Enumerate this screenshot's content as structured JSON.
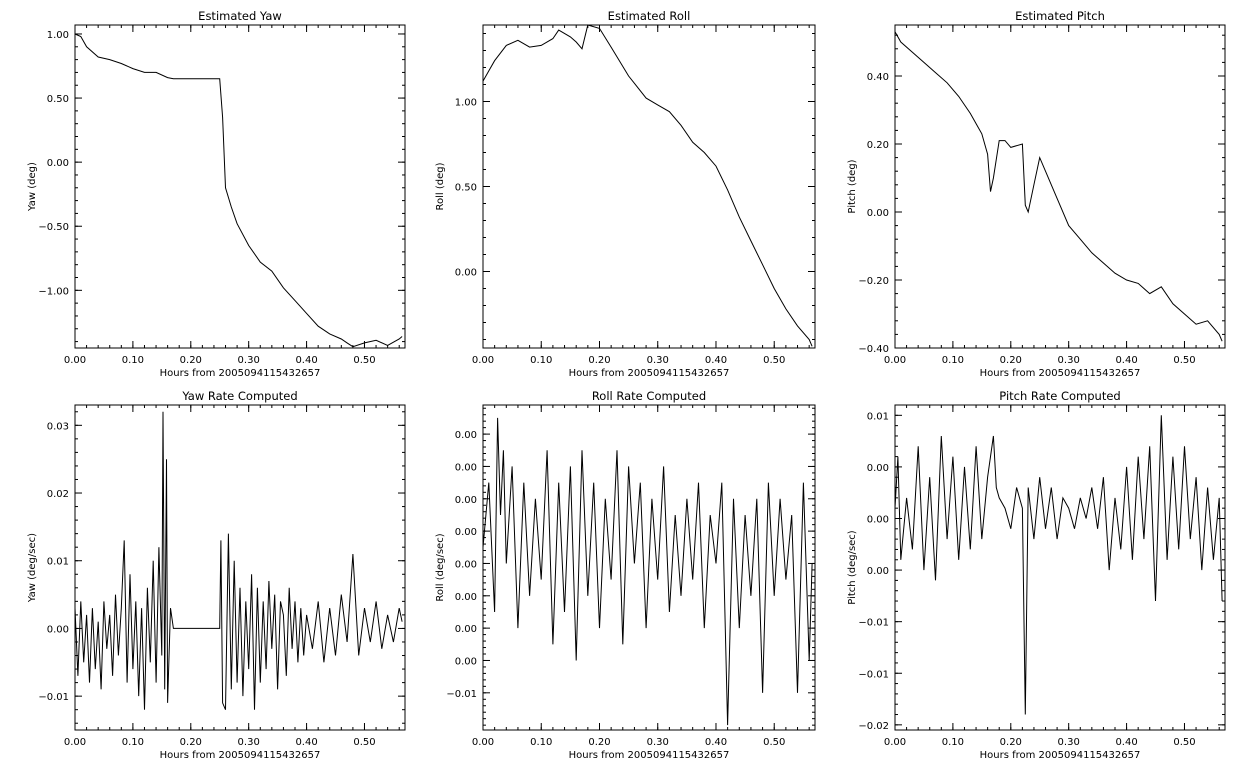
{
  "figure": {
    "xlabel": "Hours from 2005094115432657",
    "xticks": [
      "0.00",
      "0.10",
      "0.20",
      "0.30",
      "0.40",
      "0.50"
    ],
    "line_color": "#000000",
    "background": "#ffffff"
  },
  "chart_data": [
    {
      "type": "line",
      "title": "Estimated Yaw",
      "ylabel": "Yaw (deg)",
      "xlabel": "Hours from 2005094115432657",
      "xlim": [
        0,
        0.57
      ],
      "ylim": [
        -1.45,
        1.07
      ],
      "xticks": [
        0,
        0.1,
        0.2,
        0.3,
        0.4,
        0.5
      ],
      "yticks": [
        1.0,
        0.5,
        0.0,
        -0.5,
        -1.0
      ],
      "ytick_labels": [
        "1.00",
        "0.50",
        "0.00",
        "−0.50",
        "−1.00"
      ],
      "series": [
        {
          "x": [
            0,
            0.01,
            0.02,
            0.04,
            0.06,
            0.08,
            0.1,
            0.12,
            0.14,
            0.16,
            0.17,
            0.2,
            0.25,
            0.255,
            0.26,
            0.27,
            0.28,
            0.3,
            0.32,
            0.34,
            0.36,
            0.38,
            0.4,
            0.42,
            0.44,
            0.46,
            0.47,
            0.48,
            0.5,
            0.52,
            0.54,
            0.56,
            0.565
          ],
          "y": [
            1.0,
            0.98,
            0.9,
            0.82,
            0.8,
            0.77,
            0.73,
            0.7,
            0.7,
            0.66,
            0.65,
            0.65,
            0.65,
            0.35,
            -0.2,
            -0.35,
            -0.48,
            -0.65,
            -0.78,
            -0.85,
            -0.98,
            -1.08,
            -1.18,
            -1.28,
            -1.34,
            -1.38,
            -1.41,
            -1.44,
            -1.41,
            -1.39,
            -1.43,
            -1.38,
            -1.36
          ]
        }
      ]
    },
    {
      "type": "line",
      "title": "Estimated Roll",
      "ylabel": "Roll (deg)",
      "xlabel": "Hours from 2005094115432657",
      "xlim": [
        0,
        0.57
      ],
      "ylim": [
        -0.45,
        1.45
      ],
      "xticks": [
        0,
        0.1,
        0.2,
        0.3,
        0.4,
        0.5
      ],
      "yticks": [
        1.0,
        0.5,
        0.0
      ],
      "ytick_labels": [
        "1.00",
        "0.50",
        "0.00"
      ],
      "series": [
        {
          "x": [
            0,
            0.01,
            0.02,
            0.04,
            0.06,
            0.08,
            0.1,
            0.12,
            0.13,
            0.15,
            0.16,
            0.17,
            0.18,
            0.2,
            0.22,
            0.25,
            0.28,
            0.3,
            0.32,
            0.34,
            0.36,
            0.38,
            0.4,
            0.42,
            0.44,
            0.46,
            0.48,
            0.5,
            0.52,
            0.54,
            0.56,
            0.565
          ],
          "y": [
            1.12,
            1.18,
            1.24,
            1.33,
            1.36,
            1.32,
            1.33,
            1.37,
            1.42,
            1.38,
            1.35,
            1.31,
            1.45,
            1.43,
            1.32,
            1.15,
            1.02,
            0.98,
            0.94,
            0.86,
            0.76,
            0.7,
            0.62,
            0.48,
            0.32,
            0.18,
            0.04,
            -0.1,
            -0.22,
            -0.32,
            -0.4,
            -0.44
          ]
        }
      ]
    },
    {
      "type": "line",
      "title": "Estimated Pitch",
      "ylabel": "Pitch (deg)",
      "xlabel": "Hours from 2005094115432657",
      "xlim": [
        0,
        0.57
      ],
      "ylim": [
        -0.4,
        0.55
      ],
      "xticks": [
        0,
        0.1,
        0.2,
        0.3,
        0.4,
        0.5
      ],
      "yticks": [
        0.4,
        0.2,
        0.0,
        -0.2,
        -0.4
      ],
      "ytick_labels": [
        "0.40",
        "0.20",
        "0.00",
        "−0.20",
        "−0.40"
      ],
      "series": [
        {
          "x": [
            0,
            0.01,
            0.03,
            0.05,
            0.07,
            0.09,
            0.11,
            0.13,
            0.15,
            0.16,
            0.165,
            0.17,
            0.18,
            0.19,
            0.2,
            0.22,
            0.225,
            0.23,
            0.24,
            0.25,
            0.26,
            0.28,
            0.3,
            0.32,
            0.34,
            0.36,
            0.38,
            0.4,
            0.42,
            0.44,
            0.46,
            0.48,
            0.5,
            0.52,
            0.54,
            0.56,
            0.565
          ],
          "y": [
            0.53,
            0.5,
            0.47,
            0.44,
            0.41,
            0.38,
            0.34,
            0.29,
            0.23,
            0.17,
            0.06,
            0.1,
            0.21,
            0.21,
            0.19,
            0.2,
            0.02,
            0.0,
            0.08,
            0.16,
            0.12,
            0.04,
            -0.04,
            -0.08,
            -0.12,
            -0.15,
            -0.18,
            -0.2,
            -0.21,
            -0.24,
            -0.22,
            -0.27,
            -0.3,
            -0.33,
            -0.32,
            -0.36,
            -0.38
          ]
        }
      ]
    },
    {
      "type": "line",
      "title": "Yaw Rate Computed",
      "ylabel": "Yaw (deg/sec)",
      "xlabel": "Hours from 2005094115432657",
      "xlim": [
        0,
        0.57
      ],
      "ylim": [
        -0.015,
        0.033
      ],
      "xticks": [
        0,
        0.1,
        0.2,
        0.3,
        0.4,
        0.5
      ],
      "yticks": [
        0.03,
        0.02,
        0.01,
        0.0,
        -0.01
      ],
      "ytick_labels": [
        "0.03",
        "0.02",
        "0.01",
        "0.00",
        "−0.01"
      ],
      "series": [
        {
          "x": [
            0,
            0.005,
            0.01,
            0.015,
            0.02,
            0.025,
            0.03,
            0.035,
            0.04,
            0.045,
            0.05,
            0.055,
            0.06,
            0.065,
            0.07,
            0.075,
            0.08,
            0.085,
            0.09,
            0.095,
            0.1,
            0.105,
            0.11,
            0.115,
            0.12,
            0.125,
            0.13,
            0.135,
            0.14,
            0.145,
            0.15,
            0.152,
            0.155,
            0.158,
            0.16,
            0.165,
            0.17,
            0.2,
            0.25,
            0.252,
            0.255,
            0.26,
            0.265,
            0.27,
            0.275,
            0.28,
            0.285,
            0.29,
            0.295,
            0.3,
            0.305,
            0.31,
            0.315,
            0.32,
            0.325,
            0.33,
            0.335,
            0.34,
            0.345,
            0.35,
            0.355,
            0.36,
            0.365,
            0.37,
            0.375,
            0.38,
            0.385,
            0.39,
            0.395,
            0.4,
            0.41,
            0.42,
            0.43,
            0.44,
            0.45,
            0.46,
            0.47,
            0.48,
            0.49,
            0.5,
            0.51,
            0.52,
            0.53,
            0.54,
            0.55,
            0.56,
            0.565
          ],
          "y": [
            0.003,
            -0.007,
            0.004,
            -0.005,
            0.002,
            -0.008,
            0.003,
            -0.006,
            0.001,
            -0.009,
            0.004,
            -0.003,
            0.002,
            -0.007,
            0.005,
            -0.004,
            0.003,
            0.013,
            -0.008,
            0.008,
            -0.006,
            0.004,
            -0.01,
            0.003,
            -0.012,
            0.006,
            -0.005,
            0.01,
            -0.008,
            0.012,
            -0.004,
            0.032,
            -0.009,
            0.025,
            -0.011,
            0.003,
            0.0,
            0.0,
            0.0,
            0.013,
            -0.011,
            -0.012,
            0.014,
            -0.009,
            0.01,
            -0.008,
            0.006,
            -0.01,
            0.004,
            -0.006,
            0.008,
            -0.012,
            0.006,
            -0.008,
            0.004,
            -0.006,
            0.007,
            -0.003,
            0.005,
            -0.009,
            0.004,
            0.002,
            -0.007,
            0.006,
            -0.003,
            0.004,
            -0.005,
            0.003,
            -0.004,
            0.002,
            -0.003,
            0.004,
            -0.005,
            0.003,
            -0.004,
            0.005,
            -0.002,
            0.011,
            -0.004,
            0.003,
            -0.002,
            0.004,
            -0.003,
            0.002,
            -0.002,
            0.003,
            0.001
          ]
        }
      ]
    },
    {
      "type": "line",
      "title": "Roll Rate Computed",
      "ylabel": "Roll (deg/sec)",
      "xlabel": "Hours from 2005094115432657",
      "xlim": [
        0,
        0.57
      ],
      "ylim": [
        -0.0123,
        0.0078
      ],
      "xticks": [
        0,
        0.1,
        0.2,
        0.3,
        0.4,
        0.5
      ],
      "yticks": [
        0.006,
        0.004,
        0.002,
        0.0,
        -0.002,
        -0.004,
        -0.006,
        -0.008,
        -0.01
      ],
      "ytick_labels": [
        "0.00",
        "0.00",
        "0.00",
        "0.00",
        "0.00",
        "0.00",
        "0.00",
        "0.00",
        "−0.01"
      ],
      "series": [
        {
          "x": [
            0,
            0.01,
            0.02,
            0.025,
            0.03,
            0.035,
            0.04,
            0.05,
            0.06,
            0.07,
            0.08,
            0.09,
            0.1,
            0.11,
            0.12,
            0.13,
            0.14,
            0.15,
            0.16,
            0.17,
            0.18,
            0.19,
            0.2,
            0.21,
            0.22,
            0.23,
            0.24,
            0.25,
            0.26,
            0.27,
            0.28,
            0.29,
            0.3,
            0.31,
            0.32,
            0.33,
            0.34,
            0.35,
            0.36,
            0.37,
            0.38,
            0.39,
            0.4,
            0.41,
            0.42,
            0.43,
            0.44,
            0.45,
            0.46,
            0.47,
            0.48,
            0.49,
            0.5,
            0.51,
            0.52,
            0.53,
            0.54,
            0.55,
            0.56,
            0.565
          ],
          "y": [
            -0.001,
            0.003,
            -0.005,
            0.007,
            0.001,
            0.005,
            -0.002,
            0.004,
            -0.006,
            0.003,
            -0.004,
            0.002,
            -0.003,
            0.005,
            -0.007,
            0.003,
            -0.005,
            0.004,
            -0.008,
            0.005,
            -0.004,
            0.003,
            -0.006,
            0.002,
            -0.003,
            0.005,
            -0.007,
            0.004,
            -0.002,
            0.003,
            -0.006,
            0.002,
            -0.003,
            0.004,
            -0.005,
            0.001,
            -0.004,
            0.002,
            -0.003,
            0.003,
            -0.006,
            0.001,
            -0.002,
            0.003,
            -0.012,
            0.002,
            -0.006,
            0.001,
            -0.004,
            0.002,
            -0.01,
            0.003,
            -0.004,
            0.002,
            -0.003,
            0.001,
            -0.01,
            0.003,
            -0.008,
            -0.002
          ]
        }
      ]
    },
    {
      "type": "line",
      "title": "Pitch Rate Computed",
      "ylabel": "Pitch (deg/sec)",
      "xlabel": "Hours from 2005094115432657",
      "xlim": [
        0,
        0.57
      ],
      "ylim": [
        -0.0205,
        0.011
      ],
      "xticks": [
        0,
        0.1,
        0.2,
        0.3,
        0.4,
        0.5
      ],
      "yticks": [
        0.01,
        0.005,
        0.0,
        -0.005,
        -0.01,
        -0.015,
        -0.02
      ],
      "ytick_labels": [
        "0.01",
        "0.00",
        "0.00",
        "0.00",
        "−0.01",
        "−0.01",
        "−0.02"
      ],
      "series": [
        {
          "x": [
            0,
            0.005,
            0.01,
            0.02,
            0.03,
            0.04,
            0.05,
            0.06,
            0.07,
            0.08,
            0.09,
            0.1,
            0.11,
            0.12,
            0.13,
            0.14,
            0.15,
            0.16,
            0.17,
            0.175,
            0.18,
            0.19,
            0.2,
            0.21,
            0.22,
            0.225,
            0.23,
            0.24,
            0.25,
            0.26,
            0.27,
            0.28,
            0.29,
            0.3,
            0.31,
            0.32,
            0.33,
            0.34,
            0.35,
            0.36,
            0.37,
            0.38,
            0.39,
            0.4,
            0.41,
            0.42,
            0.43,
            0.44,
            0.45,
            0.46,
            0.47,
            0.48,
            0.49,
            0.5,
            0.51,
            0.52,
            0.53,
            0.54,
            0.55,
            0.56,
            0.565
          ],
          "y": [
            0.001,
            0.006,
            -0.004,
            0.002,
            -0.003,
            0.007,
            -0.005,
            0.004,
            -0.006,
            0.008,
            -0.002,
            0.006,
            -0.004,
            0.005,
            -0.003,
            0.007,
            -0.002,
            0.004,
            0.008,
            0.003,
            0.002,
            0.001,
            -0.001,
            0.003,
            0.001,
            -0.019,
            0.003,
            -0.002,
            0.004,
            -0.001,
            0.003,
            -0.002,
            0.002,
            0.001,
            -0.001,
            0.002,
            0.0,
            0.003,
            -0.001,
            0.004,
            -0.005,
            0.002,
            -0.003,
            0.005,
            -0.004,
            0.006,
            -0.002,
            0.007,
            -0.008,
            0.01,
            -0.004,
            0.006,
            -0.003,
            0.007,
            -0.002,
            0.004,
            -0.005,
            0.003,
            -0.004,
            0.002,
            -0.008
          ]
        }
      ]
    }
  ]
}
